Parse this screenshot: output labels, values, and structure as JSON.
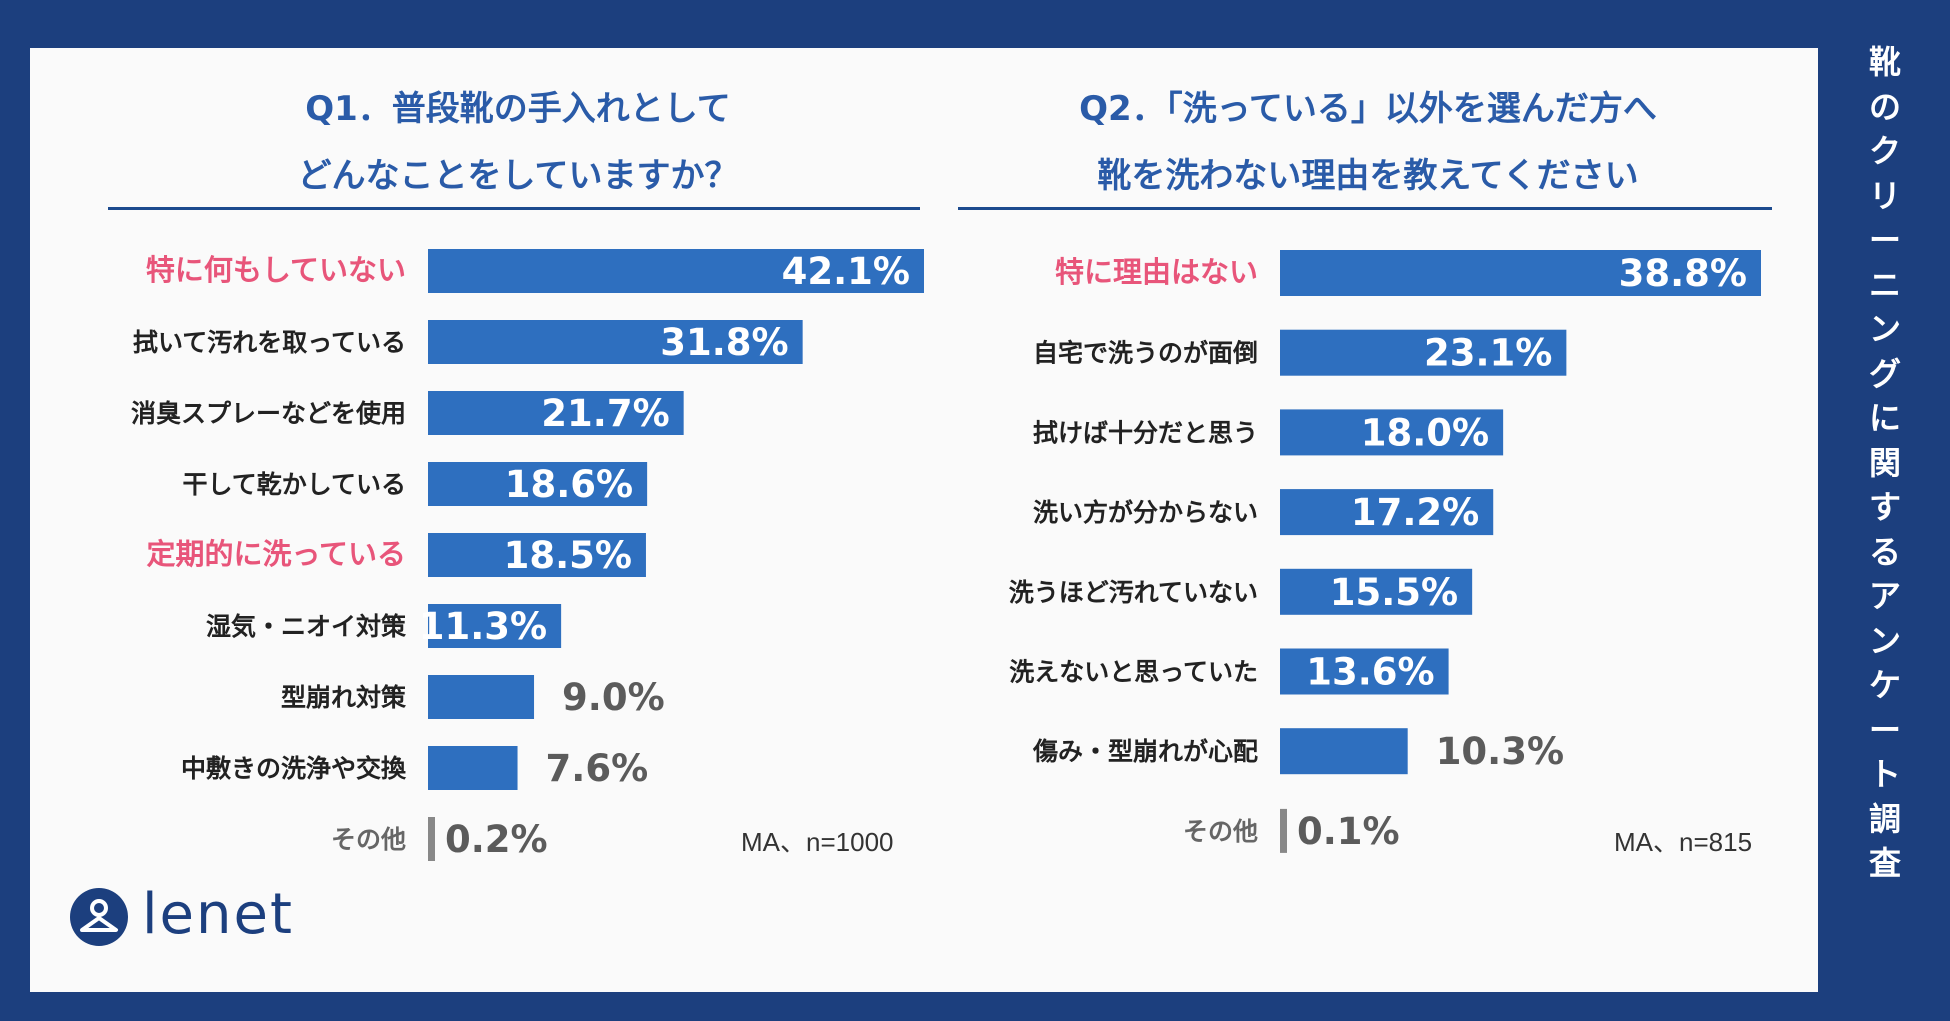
{
  "side_title": "靴のクリーニングに関するアンケート調査",
  "brand": "lenet",
  "chart_data": [
    {
      "type": "bar",
      "orientation": "horizontal",
      "title": "Q1．普段靴の手入れとして\nどんなことをしていますか？",
      "note": "MA、n=1000",
      "unit": "%",
      "xlim": [
        0,
        42.1
      ],
      "categories": [
        "特に何もしていない",
        "拭いて汚れを取っている",
        "消臭スプレーなどを使用",
        "干して乾かしている",
        "定期的に洗っている",
        "湿気・ニオイ対策",
        "型崩れ対策",
        "中敷きの洗浄や交換",
        "その他"
      ],
      "values": [
        42.1,
        31.8,
        21.7,
        18.6,
        18.5,
        11.3,
        9.0,
        7.6,
        0.2
      ],
      "value_labels": [
        "42.1%",
        "31.8%",
        "21.7%",
        "18.6%",
        "18.5%",
        "11.3%",
        "9.0%",
        "7.6%",
        "0.2%"
      ],
      "highlighted": [
        "特に何もしていない",
        "定期的に洗っている"
      ],
      "colors": {
        "bar": "#2e6fbf",
        "other_bar": "#888888",
        "highlight_label": "#e8557a"
      }
    },
    {
      "type": "bar",
      "orientation": "horizontal",
      "title": "Q2．「洗っている」以外を選んだ方へ\n靴を洗わない理由を教えてください",
      "note": "MA、n=815",
      "unit": "%",
      "xlim": [
        0,
        38.8
      ],
      "categories": [
        "特に理由はない",
        "自宅で洗うのが面倒",
        "拭けば十分だと思う",
        "洗い方が分からない",
        "洗うほど汚れていない",
        "洗えないと思っていた",
        "傷み・型崩れが心配",
        "その他"
      ],
      "values": [
        38.8,
        23.1,
        18.0,
        17.2,
        15.5,
        13.6,
        10.3,
        0.1
      ],
      "value_labels": [
        "38.8%",
        "23.1%",
        "18.0%",
        "17.2%",
        "15.5%",
        "13.6%",
        "10.3%",
        "0.1%"
      ],
      "highlighted": [
        "特に理由はない"
      ],
      "colors": {
        "bar": "#2e6fbf",
        "other_bar": "#888888",
        "highlight_label": "#e8557a"
      }
    }
  ]
}
